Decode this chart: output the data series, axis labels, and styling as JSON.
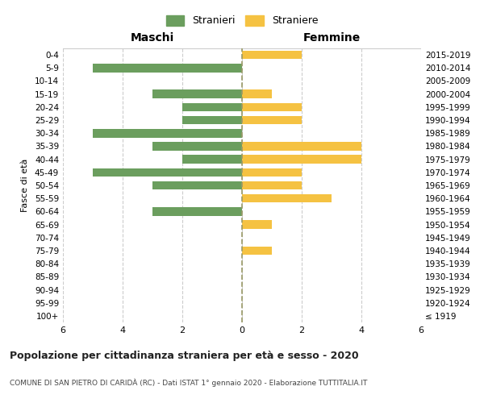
{
  "age_groups": [
    "100+",
    "95-99",
    "90-94",
    "85-89",
    "80-84",
    "75-79",
    "70-74",
    "65-69",
    "60-64",
    "55-59",
    "50-54",
    "45-49",
    "40-44",
    "35-39",
    "30-34",
    "25-29",
    "20-24",
    "15-19",
    "10-14",
    "5-9",
    "0-4"
  ],
  "birth_years": [
    "≤ 1919",
    "1920-1924",
    "1925-1929",
    "1930-1934",
    "1935-1939",
    "1940-1944",
    "1945-1949",
    "1950-1954",
    "1955-1959",
    "1960-1964",
    "1965-1969",
    "1970-1974",
    "1975-1979",
    "1980-1984",
    "1985-1989",
    "1990-1994",
    "1995-1999",
    "2000-2004",
    "2005-2009",
    "2010-2014",
    "2015-2019"
  ],
  "maschi": [
    0,
    0,
    0,
    0,
    0,
    0,
    0,
    0,
    3,
    0,
    3,
    5,
    2,
    3,
    5,
    2,
    2,
    3,
    0,
    5,
    0
  ],
  "femmine": [
    0,
    0,
    0,
    0,
    0,
    1,
    0,
    1,
    0,
    3,
    2,
    2,
    4,
    4,
    0,
    2,
    2,
    1,
    0,
    0,
    2
  ],
  "color_maschi": "#6b9e5e",
  "color_femmine": "#f5c242",
  "background_color": "#ffffff",
  "grid_color": "#cccccc",
  "dashed_line_color": "#999966",
  "title": "Popolazione per cittadinanza straniera per età e sesso - 2020",
  "subtitle": "COMUNE DI SAN PIETRO DI CARIDÀ (RC) - Dati ISTAT 1° gennaio 2020 - Elaborazione TUTTITALIA.IT",
  "ylabel_left": "Fasce di età",
  "xlabel_maschi": "Maschi",
  "xlabel_femmine": "Femmine",
  "legend_maschi": "Stranieri",
  "legend_femmine": "Straniere",
  "xlim": 6
}
